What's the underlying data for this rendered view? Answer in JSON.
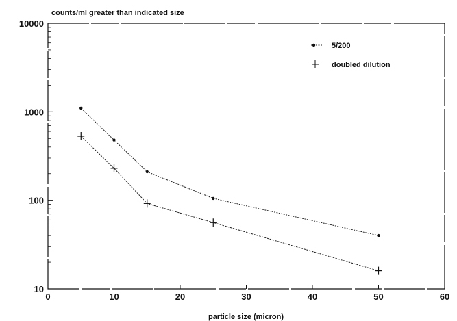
{
  "chart_data": {
    "type": "line",
    "title": "counts/ml greater than indicated size",
    "xlabel": "particle size (micron)",
    "ylabel": "",
    "xlim": [
      0,
      60
    ],
    "ylim": [
      10,
      10000
    ],
    "y_scale": "log",
    "grid": false,
    "legend_position": "top-right",
    "x_ticks": [
      "0",
      "10",
      "20",
      "30",
      "40",
      "50",
      "60"
    ],
    "y_ticks": [
      "10",
      "100",
      "1000",
      "10000"
    ],
    "series": [
      {
        "name": "5/200",
        "marker": "dot",
        "x": [
          5,
          10,
          15,
          25,
          50
        ],
        "y": [
          1100,
          480,
          210,
          105,
          40
        ]
      },
      {
        "name": "doubled dilution",
        "marker": "plus",
        "x": [
          5,
          10,
          15,
          25,
          50
        ],
        "y": [
          530,
          230,
          92,
          56,
          16
        ]
      }
    ]
  }
}
